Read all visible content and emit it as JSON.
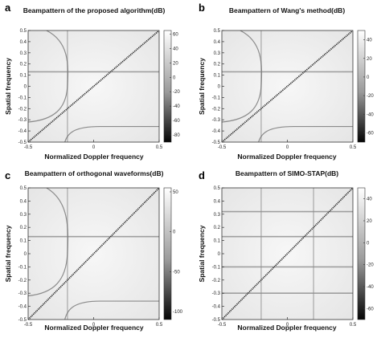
{
  "figure": {
    "caption": ""
  },
  "chart_data": [
    {
      "panel": "a",
      "type": "heatmap",
      "title": "Beampattern of the proposed algorithm(dB)",
      "xlabel": "Normalized Doppler frequency",
      "ylabel": "Spatial frequency",
      "xlim": [
        -0.5,
        0.5
      ],
      "ylim": [
        -0.5,
        0.5
      ],
      "xticks": [
        -0.5,
        0,
        0.5
      ],
      "yticks": [
        -0.5,
        -0.4,
        -0.3,
        -0.2,
        -0.1,
        0,
        0.1,
        0.2,
        0.3,
        0.4,
        0.5
      ],
      "colorbar": {
        "range": [
          -90,
          65
        ],
        "ticks": [
          60,
          40,
          20,
          0,
          -20,
          -40,
          -60,
          -80
        ]
      },
      "features": {
        "diagonal_clutter": true,
        "horizontal_lines": [
          0.13
        ],
        "vertical_lines": [
          -0.2
        ],
        "curves": [
          "upper-left",
          "lower-right"
        ]
      }
    },
    {
      "panel": "b",
      "type": "heatmap",
      "title": "Beampattern of Wang's method(dB)",
      "xlabel": "Normalized Doppler frequency",
      "ylabel": "Spatial frequency",
      "xlim": [
        -0.5,
        0.5
      ],
      "ylim": [
        -0.5,
        0.5
      ],
      "xticks": [
        -0.5,
        0,
        0.5
      ],
      "yticks": [
        -0.5,
        -0.4,
        -0.3,
        -0.2,
        -0.1,
        0,
        0.1,
        0.2,
        0.3,
        0.4,
        0.5
      ],
      "colorbar": {
        "range": [
          -70,
          50
        ],
        "ticks": [
          40,
          20,
          0,
          -20,
          -40,
          -60
        ]
      },
      "features": {
        "diagonal_clutter": true,
        "horizontal_lines": [
          0.13
        ],
        "vertical_lines": [
          -0.2
        ],
        "curves": [
          "upper-left",
          "lower-right"
        ]
      }
    },
    {
      "panel": "c",
      "type": "heatmap",
      "title": "Beampattern of orthogonal waveforms(dB)",
      "xlabel": "Normalized Doppler frequency",
      "ylabel": "Spatial frequency",
      "xlim": [
        -0.5,
        0.5
      ],
      "ylim": [
        -0.5,
        0.5
      ],
      "xticks": [
        -0.5,
        0,
        0.5
      ],
      "yticks": [
        -0.5,
        -0.4,
        -0.3,
        -0.2,
        -0.1,
        0,
        0.1,
        0.2,
        0.3,
        0.4,
        0.5
      ],
      "colorbar": {
        "range": [
          -110,
          55
        ],
        "ticks": [
          50,
          0,
          -50,
          -100
        ]
      },
      "features": {
        "diagonal_clutter": true,
        "horizontal_lines": [
          0.13
        ],
        "vertical_lines": [
          -0.2
        ],
        "curves": [
          "upper-left",
          "lower-right"
        ]
      }
    },
    {
      "panel": "d",
      "type": "heatmap",
      "title": "Beampattern of SIMO-STAP(dB)",
      "xlabel": "Normalized Doppler frequency",
      "ylabel": "Spatial frequency",
      "xlim": [
        -0.5,
        0.5
      ],
      "ylim": [
        -0.5,
        0.5
      ],
      "xticks": [
        -0.5,
        0,
        0.5
      ],
      "yticks": [
        -0.5,
        -0.4,
        -0.3,
        -0.2,
        -0.1,
        0,
        0.1,
        0.2,
        0.3,
        0.4,
        0.5
      ],
      "colorbar": {
        "range": [
          -70,
          50
        ],
        "ticks": [
          40,
          20,
          0,
          -20,
          -40,
          -60
        ]
      },
      "features": {
        "diagonal_clutter": true,
        "horizontal_lines": [
          0.32,
          0.13,
          -0.1,
          -0.3
        ],
        "vertical_lines": [
          -0.2,
          0.2
        ],
        "curves": []
      }
    }
  ]
}
